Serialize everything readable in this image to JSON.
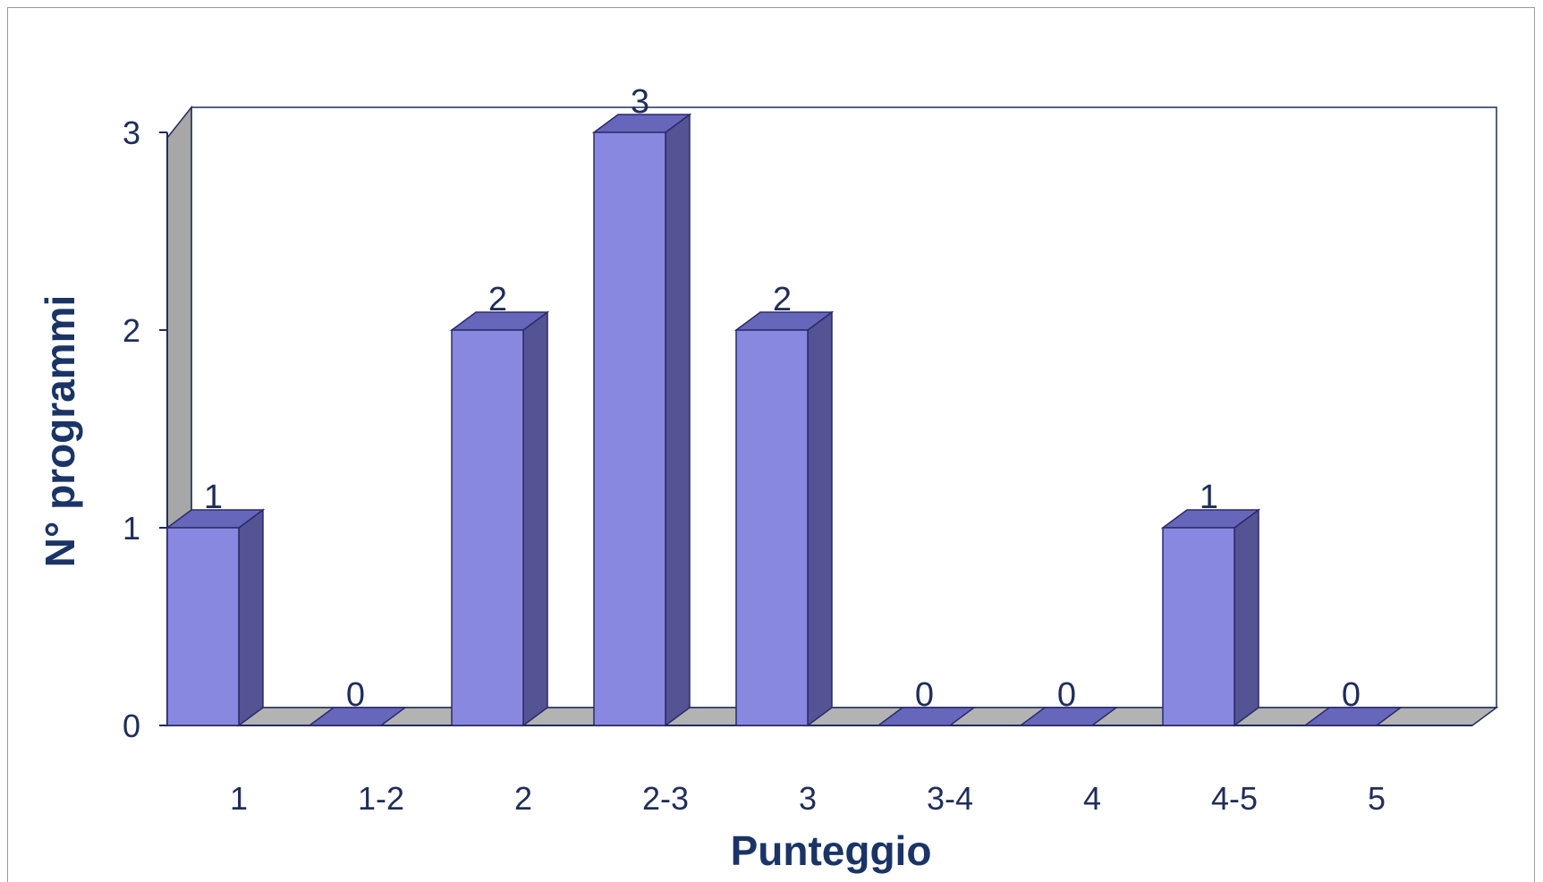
{
  "chart_data": {
    "type": "bar",
    "categories": [
      "1",
      "1-2",
      "2",
      "2-3",
      "3",
      "3-4",
      "4",
      "4-5",
      "5"
    ],
    "values": [
      1,
      0,
      2,
      3,
      2,
      0,
      0,
      1,
      0
    ],
    "title": "",
    "xlabel": "Punteggio",
    "ylabel": "N° programmi",
    "ylim": [
      0,
      3
    ],
    "yticks": [
      0,
      1,
      2,
      3
    ],
    "grid": false,
    "legend": "none",
    "style": "3d-column",
    "colors": {
      "bar_front": "#8888e0",
      "bar_side": "#545494",
      "bar_top": "#6666bb",
      "bar_edge": "#2a2a6a",
      "floor": "#b3b3b3",
      "wall": "#a7a7a7",
      "text": "#1f2d5a",
      "title": "#1a3466"
    }
  }
}
